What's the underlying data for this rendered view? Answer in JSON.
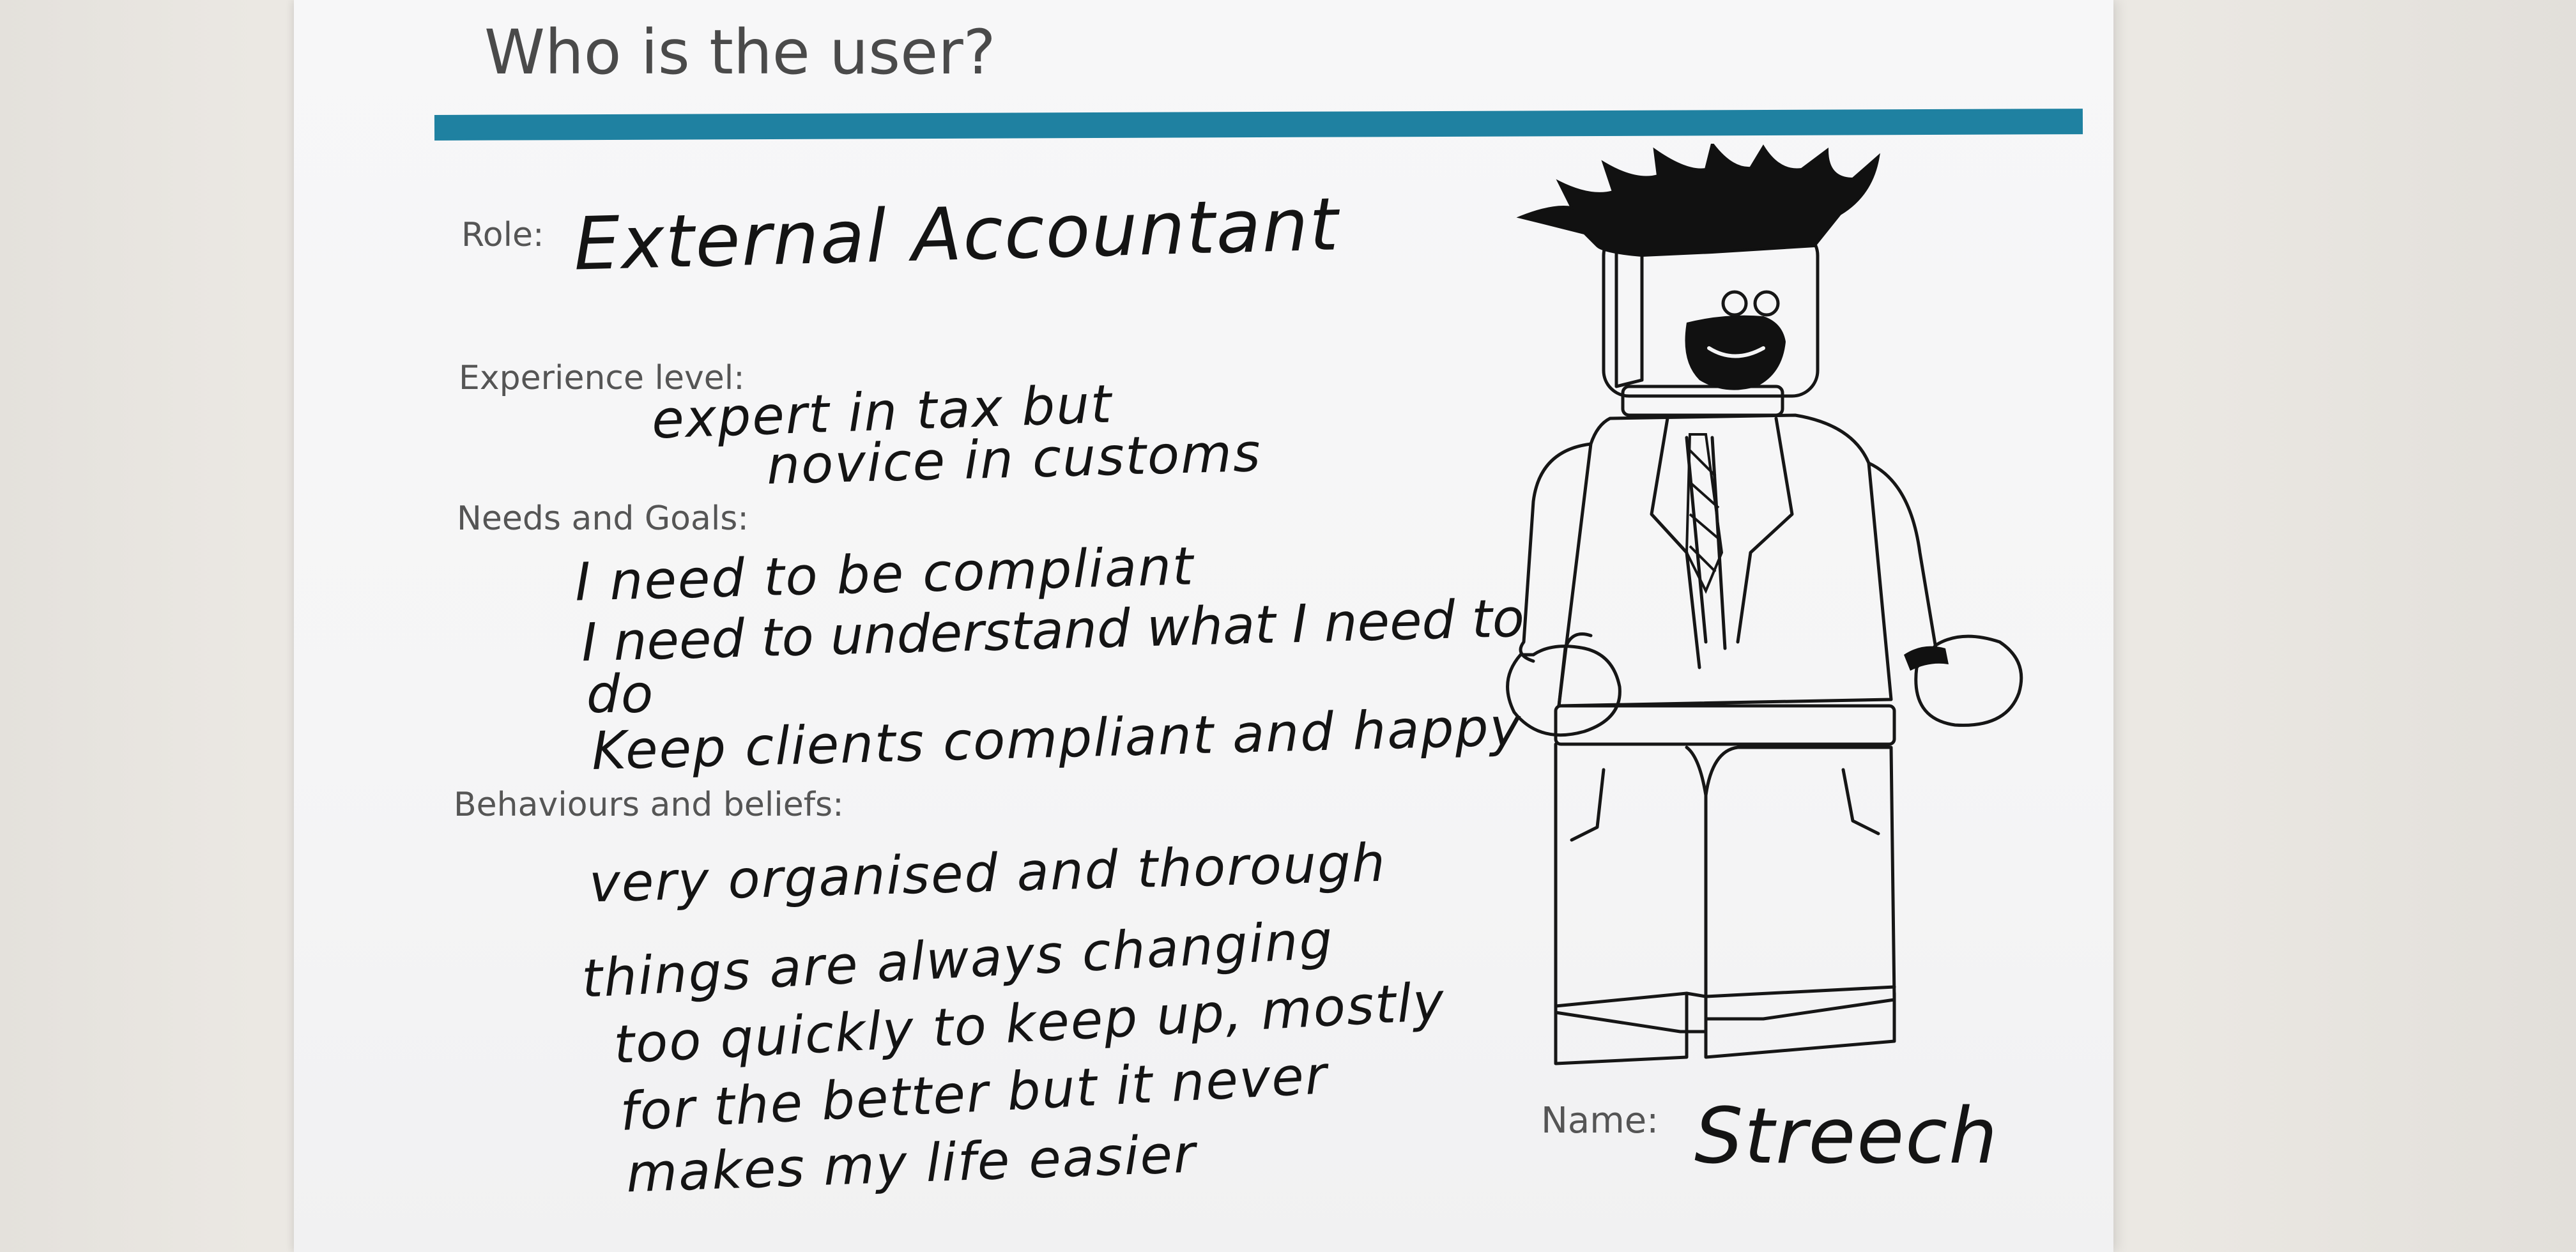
{
  "sheet": {
    "title": "Who is the user?",
    "accent_color": "#1f81a1",
    "fields": {
      "role": {
        "label": "Role:",
        "value": "External Accountant"
      },
      "experience": {
        "label": "Experience level:",
        "lines": [
          "expert in tax but",
          "novice in customs"
        ]
      },
      "needs": {
        "label": "Needs and Goals:",
        "lines": [
          "I need to be compliant",
          "I need to understand what I need to",
          "do",
          "Keep clients compliant and happy"
        ]
      },
      "behaviours": {
        "label": "Behaviours and beliefs:",
        "lines": [
          "very organised and thorough",
          "things are always changing",
          "too quickly to keep up, mostly",
          "for the better but it never",
          "makes my life easier"
        ]
      },
      "name": {
        "label": "Name:",
        "value": "Streech"
      }
    }
  }
}
